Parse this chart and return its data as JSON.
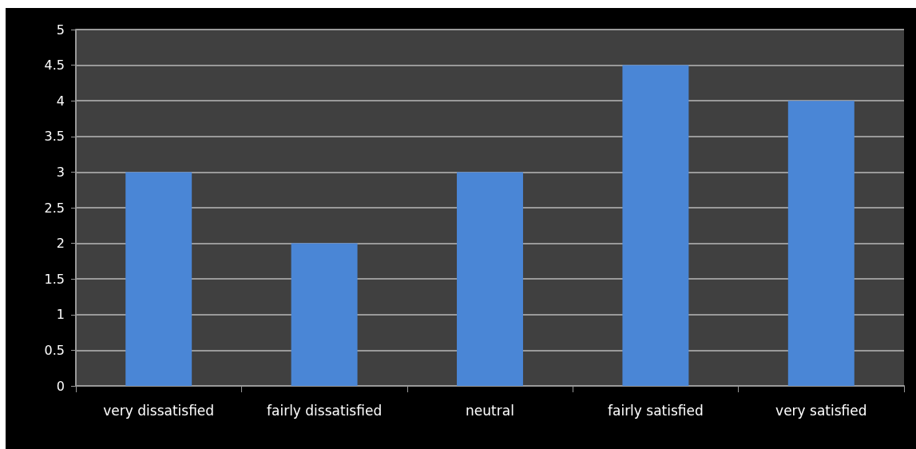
{
  "chart_data": {
    "type": "bar",
    "categories": [
      "very dissatisfied",
      "fairly dissatisfied",
      "neutral",
      "fairly satisfied",
      "very satisfied"
    ],
    "values": [
      3,
      2,
      3,
      4.5,
      4
    ],
    "color": "#4a86d6",
    "ylim": [
      0,
      5
    ],
    "yticks": [
      0,
      0.5,
      1,
      1.5,
      2,
      2.5,
      3,
      3.5,
      4,
      4.5,
      5
    ],
    "grid": "y"
  }
}
